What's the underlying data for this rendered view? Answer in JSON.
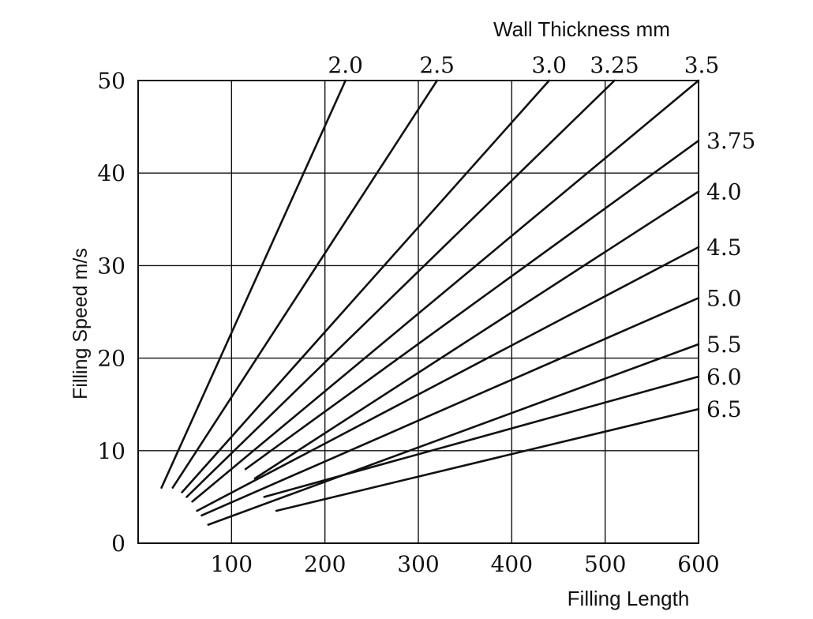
{
  "chart_data": {
    "type": "line",
    "title": "",
    "xlabel": "Filling Length",
    "ylabel": "Filling Speed m/s",
    "series_title": "Wall Thickness mm",
    "xlim": [
      0,
      600
    ],
    "ylim": [
      0,
      50
    ],
    "xticks": [
      "100",
      "200",
      "300",
      "400",
      "500",
      "600"
    ],
    "yticks": [
      "0",
      "10",
      "20",
      "30",
      "40",
      "50"
    ],
    "grid": true,
    "legend": "direct labels along top and right edges",
    "line_color": "#111111",
    "series": [
      {
        "name": "2.0",
        "points": [
          [
            25,
            6
          ],
          [
            222,
            50
          ]
        ]
      },
      {
        "name": "2.5",
        "points": [
          [
            37,
            6
          ],
          [
            320,
            50
          ]
        ]
      },
      {
        "name": "3.0",
        "points": [
          [
            47,
            5.5
          ],
          [
            440,
            50
          ]
        ]
      },
      {
        "name": "3.25",
        "points": [
          [
            52,
            5
          ],
          [
            510,
            50
          ]
        ]
      },
      {
        "name": "3.5",
        "points": [
          [
            58,
            4.5
          ],
          [
            600,
            50
          ]
        ]
      },
      {
        "name": "3.75",
        "points": [
          [
            115,
            8
          ],
          [
            600,
            43.5
          ]
        ]
      },
      {
        "name": "4.0",
        "points": [
          [
            125,
            7
          ],
          [
            600,
            38
          ]
        ]
      },
      {
        "name": "4.5",
        "points": [
          [
            63,
            3.5
          ],
          [
            600,
            32
          ]
        ]
      },
      {
        "name": "5.0",
        "points": [
          [
            68,
            3
          ],
          [
            600,
            26.5
          ]
        ]
      },
      {
        "name": "5.5",
        "points": [
          [
            75,
            2
          ],
          [
            600,
            21.5
          ]
        ]
      },
      {
        "name": "6.0",
        "points": [
          [
            135,
            5
          ],
          [
            600,
            18
          ]
        ]
      },
      {
        "name": "6.5",
        "points": [
          [
            148,
            3.5
          ],
          [
            600,
            14.5
          ]
        ]
      }
    ]
  }
}
